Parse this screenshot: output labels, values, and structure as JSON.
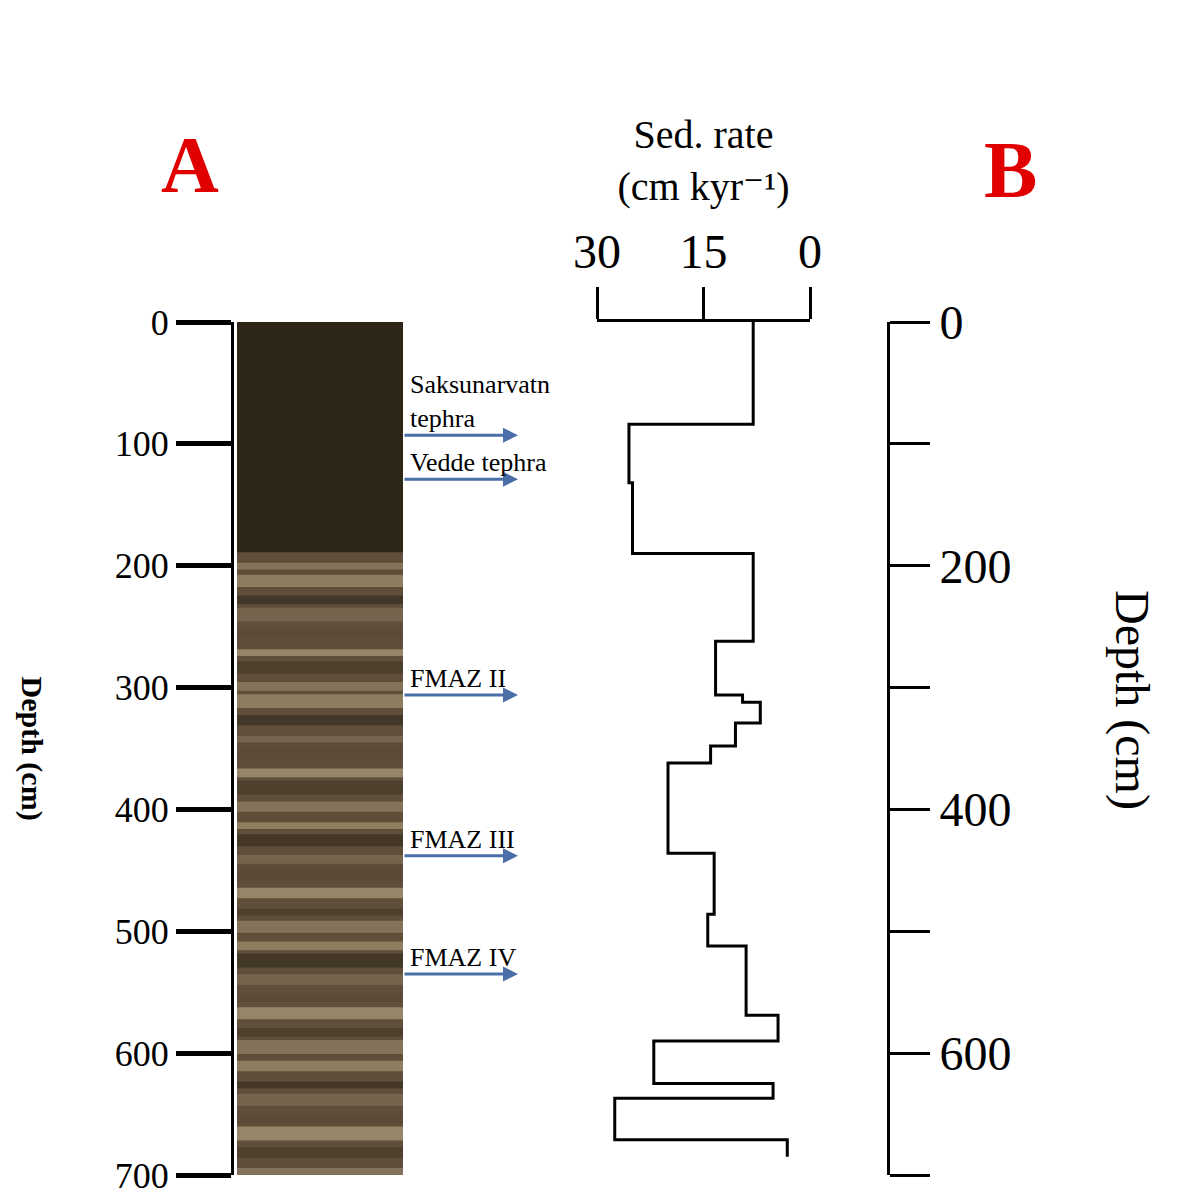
{
  "chart_data": {
    "type": "line",
    "panel_labels": [
      "A",
      "B"
    ],
    "ylabel": "Depth (cm)",
    "ylim": [
      700,
      0
    ],
    "yticks": [
      0,
      100,
      200,
      300,
      400,
      500,
      600,
      700
    ],
    "xlabel": "Sed. rate (cm kyr⁻¹)",
    "xlim": [
      30,
      0
    ],
    "xticks": [
      30,
      15,
      0
    ],
    "y2label": "Depth (cm)",
    "y2lim": [
      700,
      0
    ],
    "y2ticks": [
      0,
      200,
      400,
      600
    ],
    "y2minor_ticks": [
      100,
      300,
      500,
      700
    ],
    "series": [
      {
        "color": "#000000",
        "line_style": "step",
        "y": [
          0,
          84,
          132,
          190,
          262,
          306,
          312,
          329,
          348,
          362,
          385,
          436,
          486,
          512,
          569,
          590,
          625,
          637,
          671,
          685
        ],
        "values": [
          8,
          25.5,
          25,
          8,
          13.3,
          9.5,
          7,
          10.5,
          14,
          20,
          20,
          13.5,
          14.4,
          9,
          4.5,
          22,
          5.2,
          27.5,
          3.2,
          3.2
        ]
      }
    ],
    "annotations": [
      {
        "text": "Saksunarvatn tephra",
        "depth": 93
      },
      {
        "text": "Vedde tephra",
        "depth": 129
      },
      {
        "text": "FMAZ II",
        "depth": 306
      },
      {
        "text": "FMAZ III",
        "depth": 438
      },
      {
        "text": "FMAZ IV",
        "depth": 535
      }
    ],
    "annotation_color": "#4a6ea8",
    "panel_label_color": "#e00000"
  }
}
